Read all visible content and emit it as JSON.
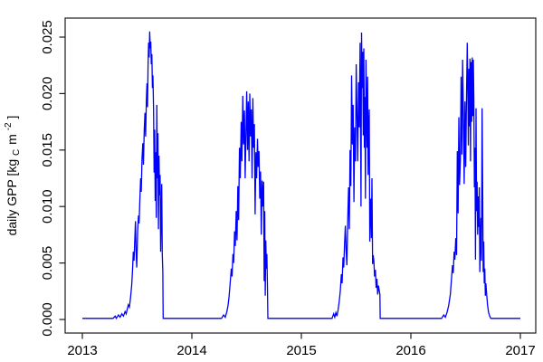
{
  "figure": {
    "background": "#ffffff",
    "line_color": "#0000ff",
    "axis_color": "#1a1a1a",
    "ylabel_parts": {
      "pre": "daily GPP [kg",
      "sub": "C",
      "mid": "m",
      "sup": "-2",
      "post": "]"
    }
  },
  "chart_data": {
    "type": "line",
    "title": "",
    "xlabel": "",
    "ylabel": "daily GPP [kg_C m^-2]",
    "grid": false,
    "legend": "none",
    "xlim": [
      2012.84,
      2017.16
    ],
    "ylim": [
      -0.001,
      0.0265
    ],
    "x_ticks": [
      2013,
      2014,
      2015,
      2016,
      2017
    ],
    "x_tick_labels": [
      "2013",
      "2014",
      "2015",
      "2016",
      "2017"
    ],
    "y_ticks": [
      0.0,
      0.005,
      0.01,
      0.015,
      0.02,
      0.025
    ],
    "y_tick_labels": [
      "0.000",
      "0.005",
      "0.010",
      "0.015",
      "0.020",
      "0.025"
    ],
    "series": [
      {
        "name": "daily GPP",
        "color": "#0000ff",
        "points": [
          [
            2013.0,
            0.0001
          ],
          [
            2013.28,
            0.0001
          ],
          [
            2013.3,
            0.0003
          ],
          [
            2013.31,
            0.0001
          ],
          [
            2013.33,
            0.0004
          ],
          [
            2013.345,
            0.0002
          ],
          [
            2013.36,
            0.0005
          ],
          [
            2013.375,
            0.0003
          ],
          [
            2013.39,
            0.0007
          ],
          [
            2013.4,
            0.0005
          ],
          [
            2013.41,
            0.0009
          ],
          [
            2013.42,
            0.0013
          ],
          [
            2013.43,
            0.0011
          ],
          [
            2013.44,
            0.0019
          ],
          [
            2013.45,
            0.003
          ],
          [
            2013.458,
            0.0043
          ],
          [
            2013.465,
            0.006
          ],
          [
            2013.472,
            0.0052
          ],
          [
            2013.478,
            0.0068
          ],
          [
            2013.485,
            0.0087
          ],
          [
            2013.49,
            0.0062
          ],
          [
            2013.497,
            0.0046
          ],
          [
            2013.505,
            0.0078
          ],
          [
            2013.512,
            0.0092
          ],
          [
            2013.518,
            0.0085
          ],
          [
            2013.525,
            0.0105
          ],
          [
            2013.532,
            0.0125
          ],
          [
            2013.538,
            0.0113
          ],
          [
            2013.545,
            0.0142
          ],
          [
            2013.552,
            0.0156
          ],
          [
            2013.558,
            0.0137
          ],
          [
            2013.565,
            0.0168
          ],
          [
            2013.572,
            0.0183
          ],
          [
            2013.578,
            0.0162
          ],
          [
            2013.585,
            0.0196
          ],
          [
            2013.59,
            0.0209
          ],
          [
            2013.595,
            0.0188
          ],
          [
            2013.6,
            0.0225
          ],
          [
            2013.605,
            0.0245
          ],
          [
            2013.61,
            0.0232
          ],
          [
            2013.615,
            0.0255
          ],
          [
            2013.62,
            0.024
          ],
          [
            2013.625,
            0.0246
          ],
          [
            2013.63,
            0.0226
          ],
          [
            2013.635,
            0.0235
          ],
          [
            2013.64,
            0.0205
          ],
          [
            2013.645,
            0.0216
          ],
          [
            2013.65,
            0.0185
          ],
          [
            2013.655,
            0.013
          ],
          [
            2013.66,
            0.0168
          ],
          [
            2013.665,
            0.0105
          ],
          [
            2013.67,
            0.0148
          ],
          [
            2013.675,
            0.009
          ],
          [
            2013.68,
            0.019
          ],
          [
            2013.685,
            0.0125
          ],
          [
            2013.69,
            0.0165
          ],
          [
            2013.695,
            0.008
          ],
          [
            2013.7,
            0.0145
          ],
          [
            2013.705,
            0.011
          ],
          [
            2013.71,
            0.0128
          ],
          [
            2013.715,
            0.006
          ],
          [
            2013.72,
            0.0093
          ],
          [
            2013.725,
            0.012
          ],
          [
            2013.73,
            0.0058
          ],
          [
            2013.735,
            0.0042
          ],
          [
            2013.738,
            0.0001
          ],
          [
            2013.8,
            0.0001
          ],
          [
            2014.27,
            0.0001
          ],
          [
            2014.29,
            0.0004
          ],
          [
            2014.305,
            0.0002
          ],
          [
            2014.32,
            0.0007
          ],
          [
            2014.33,
            0.0012
          ],
          [
            2014.34,
            0.002
          ],
          [
            2014.35,
            0.0032
          ],
          [
            2014.36,
            0.0045
          ],
          [
            2014.367,
            0.0038
          ],
          [
            2014.375,
            0.0058
          ],
          [
            2014.382,
            0.005
          ],
          [
            2014.39,
            0.0078
          ],
          [
            2014.397,
            0.0065
          ],
          [
            2014.405,
            0.0096
          ],
          [
            2014.412,
            0.007
          ],
          [
            2014.42,
            0.0118
          ],
          [
            2014.427,
            0.0088
          ],
          [
            2014.435,
            0.0152
          ],
          [
            2014.442,
            0.0125
          ],
          [
            2014.45,
            0.0175
          ],
          [
            2014.457,
            0.014
          ],
          [
            2014.465,
            0.0198
          ],
          [
            2014.472,
            0.0155
          ],
          [
            2014.48,
            0.0185
          ],
          [
            2014.487,
            0.0125
          ],
          [
            2014.494,
            0.0165
          ],
          [
            2014.501,
            0.0202
          ],
          [
            2014.508,
            0.015
          ],
          [
            2014.515,
            0.0193
          ],
          [
            2014.522,
            0.014
          ],
          [
            2014.529,
            0.02
          ],
          [
            2014.536,
            0.0162
          ],
          [
            2014.543,
            0.0186
          ],
          [
            2014.55,
            0.0125
          ],
          [
            2014.557,
            0.0196
          ],
          [
            2014.564,
            0.0152
          ],
          [
            2014.571,
            0.0173
          ],
          [
            2014.578,
            0.0093
          ],
          [
            2014.585,
            0.0148
          ],
          [
            2014.592,
            0.0125
          ],
          [
            2014.599,
            0.016
          ],
          [
            2014.606,
            0.0135
          ],
          [
            2014.613,
            0.0149
          ],
          [
            2014.62,
            0.0107
          ],
          [
            2014.627,
            0.0131
          ],
          [
            2014.634,
            0.0075
          ],
          [
            2014.641,
            0.0123
          ],
          [
            2014.648,
            0.01
          ],
          [
            2014.655,
            0.0122
          ],
          [
            2014.66,
            0.0034
          ],
          [
            2014.665,
            0.0096
          ],
          [
            2014.67,
            0.0021
          ],
          [
            2014.675,
            0.007
          ],
          [
            2014.68,
            0.0045
          ],
          [
            2014.685,
            0.0058
          ],
          [
            2014.69,
            0.003
          ],
          [
            2014.694,
            0.0001
          ],
          [
            2014.75,
            0.0001
          ],
          [
            2015.28,
            0.0001
          ],
          [
            2015.295,
            0.0005
          ],
          [
            2015.305,
            0.0002
          ],
          [
            2015.315,
            0.0006
          ],
          [
            2015.325,
            0.0003
          ],
          [
            2015.335,
            0.0008
          ],
          [
            2015.345,
            0.0015
          ],
          [
            2015.355,
            0.0025
          ],
          [
            2015.365,
            0.004
          ],
          [
            2015.372,
            0.0032
          ],
          [
            2015.38,
            0.0055
          ],
          [
            2015.387,
            0.0046
          ],
          [
            2015.395,
            0.0068
          ],
          [
            2015.402,
            0.0083
          ],
          [
            2015.409,
            0.006
          ],
          [
            2015.416,
            0.0048
          ],
          [
            2015.424,
            0.009
          ],
          [
            2015.431,
            0.0117
          ],
          [
            2015.438,
            0.008
          ],
          [
            2015.445,
            0.015
          ],
          [
            2015.452,
            0.0118
          ],
          [
            2015.459,
            0.0216
          ],
          [
            2015.466,
            0.0155
          ],
          [
            2015.473,
            0.019
          ],
          [
            2015.48,
            0.0104
          ],
          [
            2015.487,
            0.017
          ],
          [
            2015.494,
            0.014
          ],
          [
            2015.501,
            0.0226
          ],
          [
            2015.508,
            0.018
          ],
          [
            2015.515,
            0.014
          ],
          [
            2015.522,
            0.021
          ],
          [
            2015.529,
            0.017
          ],
          [
            2015.536,
            0.0245
          ],
          [
            2015.54,
            0.019
          ],
          [
            2015.545,
            0.01
          ],
          [
            2015.55,
            0.0254
          ],
          [
            2015.555,
            0.0205
          ],
          [
            2015.56,
            0.0237
          ],
          [
            2015.565,
            0.0163
          ],
          [
            2015.57,
            0.024
          ],
          [
            2015.575,
            0.0152
          ],
          [
            2015.58,
            0.0197
          ],
          [
            2015.585,
            0.0107
          ],
          [
            2015.59,
            0.023
          ],
          [
            2015.595,
            0.0189
          ],
          [
            2015.6,
            0.0152
          ],
          [
            2015.605,
            0.0215
          ],
          [
            2015.61,
            0.0128
          ],
          [
            2015.615,
            0.017
          ],
          [
            2015.62,
            0.0186
          ],
          [
            2015.625,
            0.0069
          ],
          [
            2015.63,
            0.0096
          ],
          [
            2015.635,
            0.0107
          ],
          [
            2015.64,
            0.0072
          ],
          [
            2015.645,
            0.0125
          ],
          [
            2015.65,
            0.0049
          ],
          [
            2015.655,
            0.0057
          ],
          [
            2015.662,
            0.0052
          ],
          [
            2015.669,
            0.0038
          ],
          [
            2015.676,
            0.0044
          ],
          [
            2015.683,
            0.0028
          ],
          [
            2015.69,
            0.0036
          ],
          [
            2015.697,
            0.0022
          ],
          [
            2015.704,
            0.003
          ],
          [
            2015.711,
            0.0026
          ],
          [
            2015.717,
            0.0022
          ],
          [
            2015.72,
            0.0001
          ],
          [
            2015.78,
            0.0001
          ],
          [
            2016.28,
            0.0001
          ],
          [
            2016.3,
            0.0004
          ],
          [
            2016.315,
            0.0002
          ],
          [
            2016.33,
            0.0006
          ],
          [
            2016.345,
            0.0012
          ],
          [
            2016.36,
            0.0022
          ],
          [
            2016.37,
            0.0035
          ],
          [
            2016.38,
            0.0048
          ],
          [
            2016.387,
            0.0041
          ],
          [
            2016.395,
            0.006
          ],
          [
            2016.402,
            0.0053
          ],
          [
            2016.41,
            0.0072
          ],
          [
            2016.417,
            0.0057
          ],
          [
            2016.424,
            0.0149
          ],
          [
            2016.431,
            0.0094
          ],
          [
            2016.438,
            0.0179
          ],
          [
            2016.445,
            0.0119
          ],
          [
            2016.452,
            0.0141
          ],
          [
            2016.459,
            0.0215
          ],
          [
            2016.466,
            0.0146
          ],
          [
            2016.473,
            0.023
          ],
          [
            2016.48,
            0.018
          ],
          [
            2016.487,
            0.012
          ],
          [
            2016.494,
            0.0193
          ],
          [
            2016.501,
            0.0135
          ],
          [
            2016.508,
            0.0199
          ],
          [
            2016.515,
            0.0245
          ],
          [
            2016.52,
            0.0205
          ],
          [
            2016.525,
            0.0154
          ],
          [
            2016.53,
            0.0222
          ],
          [
            2016.535,
            0.0171
          ],
          [
            2016.54,
            0.0231
          ],
          [
            2016.545,
            0.014
          ],
          [
            2016.55,
            0.0228
          ],
          [
            2016.555,
            0.0175
          ],
          [
            2016.56,
            0.0232
          ],
          [
            2016.565,
            0.018
          ],
          [
            2016.57,
            0.023
          ],
          [
            2016.575,
            0.0195
          ],
          [
            2016.58,
            0.0117
          ],
          [
            2016.585,
            0.0152
          ],
          [
            2016.59,
            0.0053
          ],
          [
            2016.595,
            0.0187
          ],
          [
            2016.6,
            0.0096
          ],
          [
            2016.605,
            0.0122
          ],
          [
            2016.61,
            0.0075
          ],
          [
            2016.615,
            0.0109
          ],
          [
            2016.62,
            0.0082
          ],
          [
            2016.625,
            0.0117
          ],
          [
            2016.63,
            0.0042
          ],
          [
            2016.635,
            0.0069
          ],
          [
            2016.64,
            0.009
          ],
          [
            2016.645,
            0.0052
          ],
          [
            2016.65,
            0.0187
          ],
          [
            2016.655,
            0.012
          ],
          [
            2016.66,
            0.0042
          ],
          [
            2016.665,
            0.0069
          ],
          [
            2016.67,
            0.0032
          ],
          [
            2016.675,
            0.0045
          ],
          [
            2016.68,
            0.0021
          ],
          [
            2016.685,
            0.0032
          ],
          [
            2016.69,
            0.0025
          ],
          [
            2016.7,
            0.0013
          ],
          [
            2016.71,
            0.0006
          ],
          [
            2016.72,
            0.0003
          ],
          [
            2016.73,
            0.0001
          ],
          [
            2017.0,
            0.0001
          ]
        ]
      }
    ]
  }
}
